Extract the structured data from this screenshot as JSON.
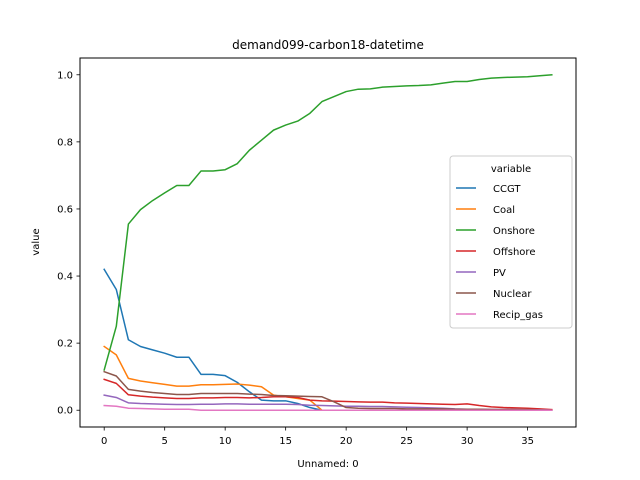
{
  "chart_data": {
    "type": "line",
    "title": "demand099-carbon18-datetime",
    "xlabel": "Unnamed: 0",
    "ylabel": "value",
    "xlim": [
      -2,
      39
    ],
    "ylim": [
      -0.05,
      1.05
    ],
    "xticks": [
      0,
      5,
      10,
      15,
      20,
      25,
      30,
      35
    ],
    "xtick_labels": [
      "0",
      "5",
      "10",
      "15",
      "20",
      "25",
      "30",
      "35"
    ],
    "yticks": [
      0.0,
      0.2,
      0.4,
      0.6,
      0.8,
      1.0
    ],
    "ytick_labels": [
      "0.0",
      "0.2",
      "0.4",
      "0.6",
      "0.8",
      "1.0"
    ],
    "grid": false,
    "legend": {
      "title": "variable",
      "placement": "center-right"
    },
    "x": [
      0,
      1,
      2,
      3,
      4,
      5,
      6,
      7,
      8,
      9,
      10,
      11,
      12,
      13,
      14,
      15,
      16,
      17,
      18,
      19,
      20,
      21,
      22,
      23,
      24,
      25,
      26,
      27,
      28,
      29,
      30,
      31,
      32,
      33,
      34,
      35,
      36,
      37
    ],
    "series": [
      {
        "name": "CCGT",
        "color": "#1f77b4",
        "values": [
          0.42,
          0.36,
          0.21,
          0.19,
          0.18,
          0.17,
          0.158,
          0.158,
          0.107,
          0.107,
          0.103,
          0.083,
          0.055,
          0.03,
          0.028,
          0.028,
          0.02,
          0.008,
          0.0,
          0.0,
          0.0,
          0.0,
          0.0,
          0.0,
          0.0,
          0.0,
          0.0,
          0.0,
          0.0,
          0.0,
          0.0,
          0.0,
          0.0,
          0.0,
          0.0,
          0.0,
          0.0,
          0.0
        ]
      },
      {
        "name": "Coal",
        "color": "#ff7f0e",
        "values": [
          0.19,
          0.165,
          0.095,
          0.087,
          0.082,
          0.077,
          0.072,
          0.072,
          0.076,
          0.076,
          0.077,
          0.078,
          0.075,
          0.07,
          0.045,
          0.04,
          0.035,
          0.03,
          0.0,
          0.0,
          0.0,
          0.0,
          0.0,
          0.0,
          0.0,
          0.0,
          0.0,
          0.0,
          0.0,
          0.0,
          0.0,
          0.0,
          0.0,
          0.0,
          0.0,
          0.0,
          0.0,
          0.0
        ]
      },
      {
        "name": "Onshore",
        "color": "#2ca02c",
        "values": [
          0.12,
          0.25,
          0.555,
          0.598,
          0.625,
          0.648,
          0.67,
          0.67,
          0.713,
          0.713,
          0.717,
          0.735,
          0.775,
          0.805,
          0.835,
          0.85,
          0.862,
          0.885,
          0.92,
          0.935,
          0.95,
          0.957,
          0.958,
          0.963,
          0.965,
          0.967,
          0.968,
          0.97,
          0.975,
          0.98,
          0.98,
          0.986,
          0.99,
          0.992,
          0.993,
          0.994,
          0.997,
          1.0
        ]
      },
      {
        "name": "Offshore",
        "color": "#d62728",
        "values": [
          0.092,
          0.08,
          0.046,
          0.042,
          0.039,
          0.037,
          0.035,
          0.035,
          0.037,
          0.037,
          0.038,
          0.038,
          0.037,
          0.038,
          0.04,
          0.04,
          0.038,
          0.03,
          0.028,
          0.027,
          0.026,
          0.025,
          0.024,
          0.024,
          0.022,
          0.021,
          0.02,
          0.019,
          0.018,
          0.017,
          0.019,
          0.014,
          0.01,
          0.008,
          0.007,
          0.006,
          0.004,
          0.002
        ]
      },
      {
        "name": "PV",
        "color": "#9467bd",
        "values": [
          0.045,
          0.038,
          0.022,
          0.02,
          0.019,
          0.018,
          0.017,
          0.017,
          0.018,
          0.018,
          0.019,
          0.019,
          0.018,
          0.018,
          0.018,
          0.018,
          0.017,
          0.015,
          0.014,
          0.013,
          0.012,
          0.012,
          0.011,
          0.011,
          0.01,
          0.009,
          0.008,
          0.007,
          0.006,
          0.004,
          0.003,
          0.003,
          0.002,
          0.002,
          0.002,
          0.001,
          0.001,
          0.0
        ]
      },
      {
        "name": "Nuclear",
        "color": "#8c564b",
        "values": [
          0.115,
          0.102,
          0.062,
          0.057,
          0.053,
          0.05,
          0.047,
          0.047,
          0.05,
          0.05,
          0.05,
          0.05,
          0.048,
          0.047,
          0.044,
          0.043,
          0.042,
          0.041,
          0.04,
          0.025,
          0.008,
          0.006,
          0.005,
          0.005,
          0.005,
          0.004,
          0.004,
          0.004,
          0.004,
          0.003,
          0.003,
          0.003,
          0.002,
          0.002,
          0.002,
          0.002,
          0.001,
          0.0
        ]
      },
      {
        "name": "Recip_gas",
        "color": "#e377c2",
        "values": [
          0.014,
          0.012,
          0.006,
          0.005,
          0.004,
          0.003,
          0.003,
          0.003,
          0.0,
          0.0,
          0.0,
          0.0,
          0.0,
          0.0,
          0.0,
          0.0,
          0.0,
          0.0,
          0.0,
          0.0,
          0.0,
          0.0,
          0.0,
          0.0,
          0.0,
          0.0,
          0.0,
          0.0,
          0.0,
          0.0,
          0.0,
          0.0,
          0.0,
          0.0,
          0.0,
          0.0,
          0.0,
          0.0
        ]
      }
    ]
  }
}
